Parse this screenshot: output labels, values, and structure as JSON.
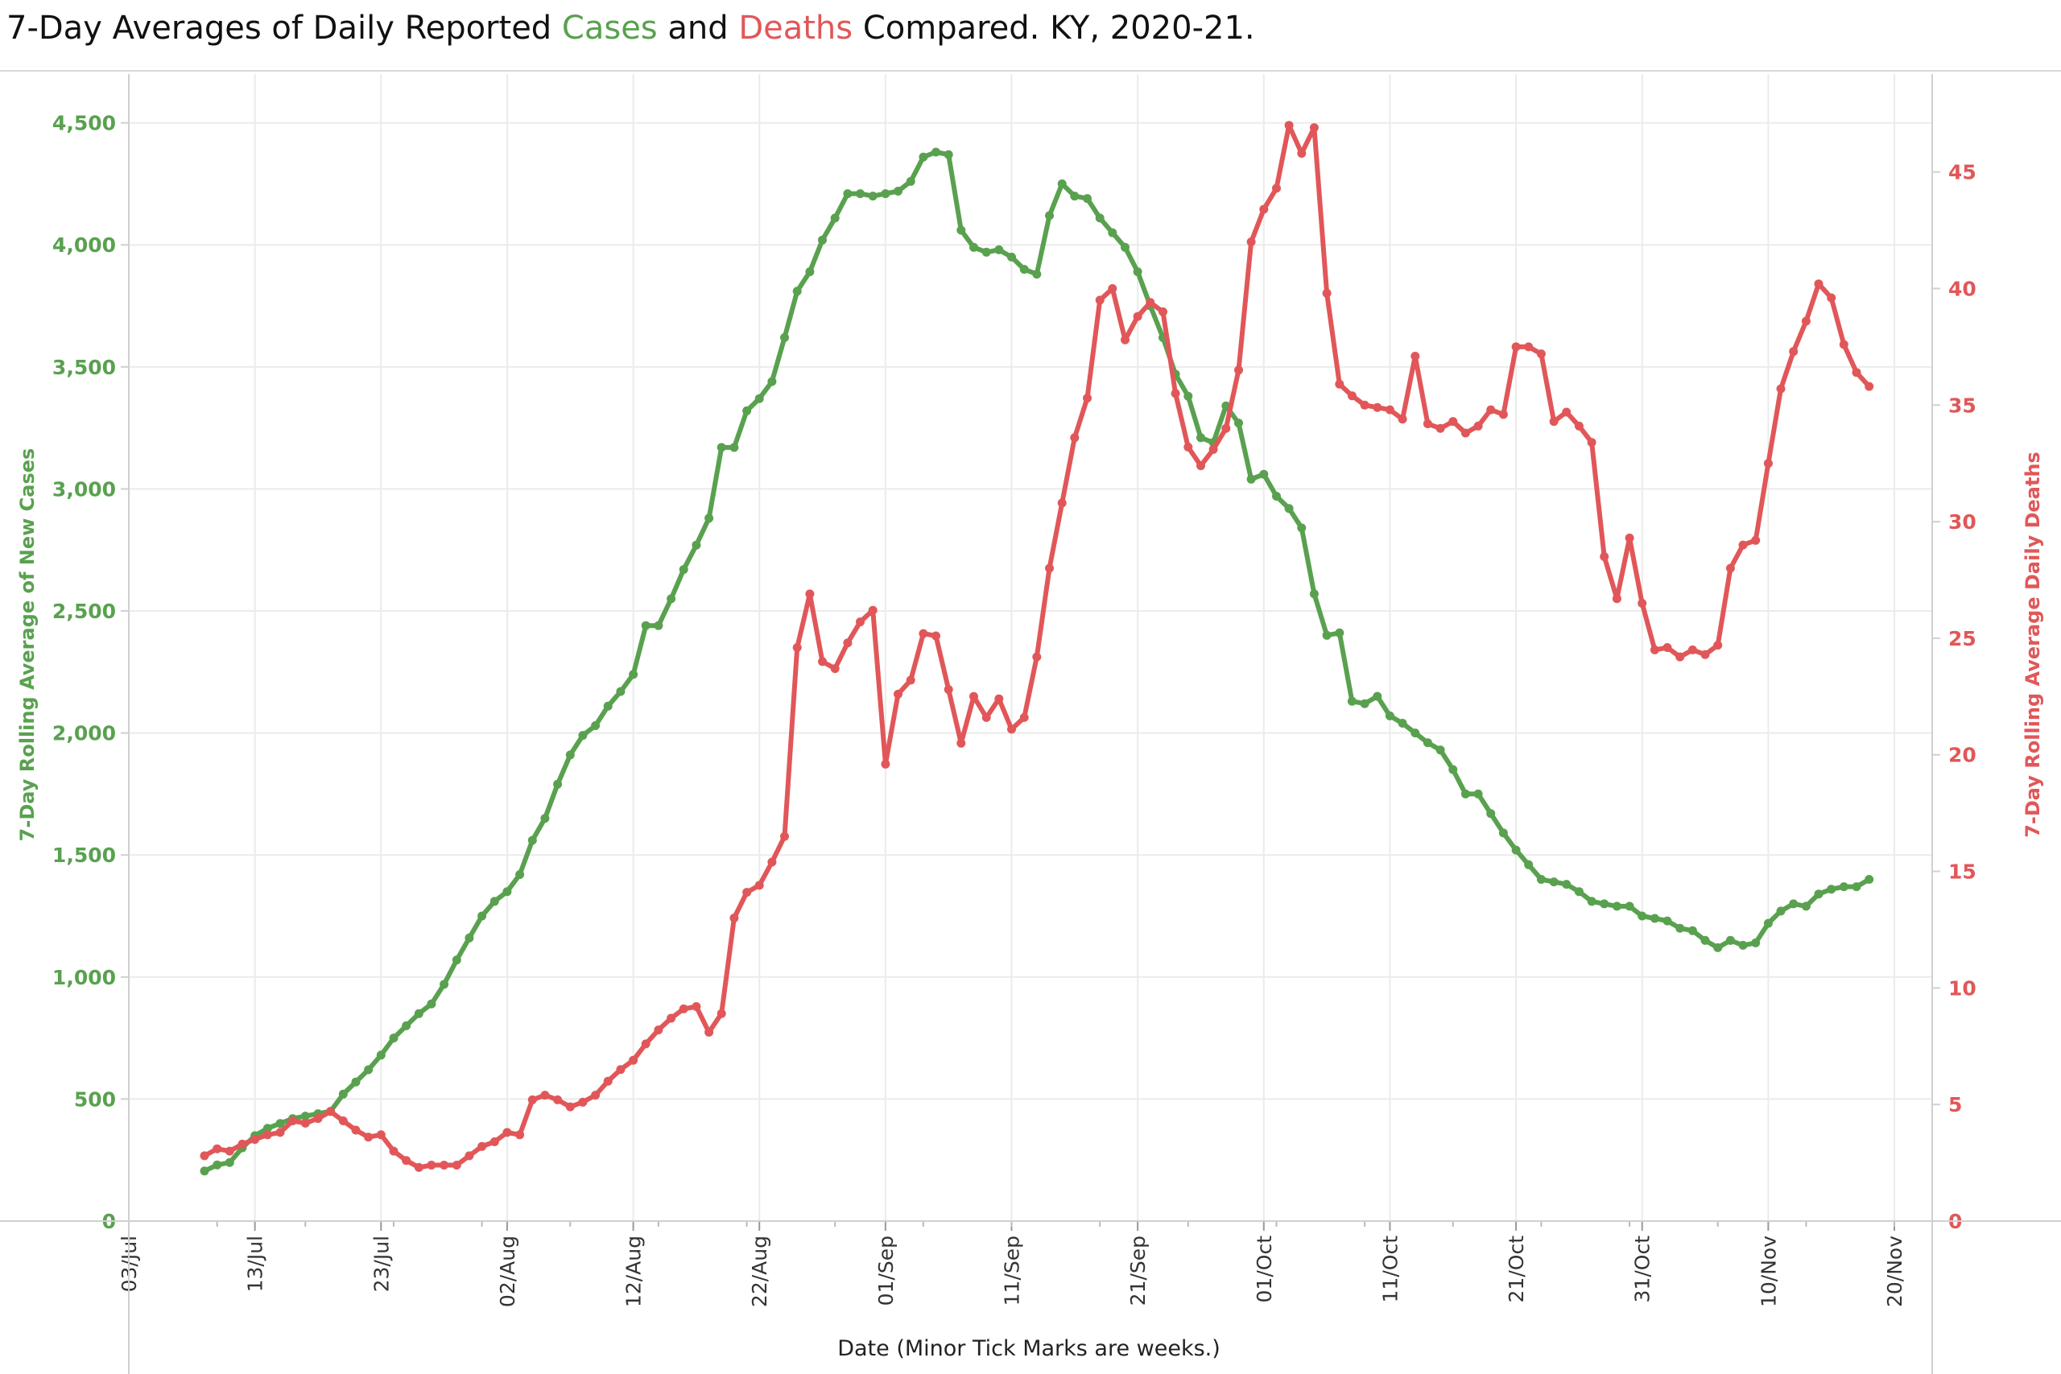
{
  "title": {
    "part1": "7-Day Averages of Daily Reported ",
    "cases_word": "Cases",
    "part2": " and ",
    "deaths_word": "Deaths",
    "part3": " Compared. KY, 2020-21."
  },
  "colors": {
    "cases": "#59a14f",
    "deaths": "#e15759",
    "grid": "#ebebeb",
    "axis": "#d0d0d0"
  },
  "chart_data": {
    "type": "line",
    "title": "7-Day Averages of Daily Reported Cases and Deaths Compared. KY, 2020-21.",
    "xlabel": "Date  (Minor Tick Marks are weeks.)",
    "ylabel": "7-Day Rolling  Average of New Cases",
    "ylabel_right": "7-Day Rolling Average Daily  Deaths",
    "x_date_start": "2021-07-03",
    "x_date_end": "2021-11-23",
    "x_ticks": [
      {
        "date": "2021-07-03",
        "label": "03/Jul"
      },
      {
        "date": "2021-07-13",
        "label": "13/Jul"
      },
      {
        "date": "2021-07-23",
        "label": "23/Jul"
      },
      {
        "date": "2021-08-02",
        "label": "02/Aug"
      },
      {
        "date": "2021-08-12",
        "label": "12/Aug"
      },
      {
        "date": "2021-08-22",
        "label": "22/Aug"
      },
      {
        "date": "2021-09-01",
        "label": "01/Sep"
      },
      {
        "date": "2021-09-11",
        "label": "11/Sep"
      },
      {
        "date": "2021-09-21",
        "label": "21/Sep"
      },
      {
        "date": "2021-10-01",
        "label": "01/Oct"
      },
      {
        "date": "2021-10-11",
        "label": "11/Oct"
      },
      {
        "date": "2021-10-21",
        "label": "21/Oct"
      },
      {
        "date": "2021-10-31",
        "label": "31/Oct"
      },
      {
        "date": "2021-11-10",
        "label": "10/Nov"
      },
      {
        "date": "2021-11-20",
        "label": "20/Nov"
      }
    ],
    "y_left": {
      "min": 0,
      "max": 4700,
      "ticks": [
        {
          "value": 0,
          "label": "0"
        },
        {
          "value": 500,
          "label": "500"
        },
        {
          "value": 1000,
          "label": "1,000"
        },
        {
          "value": 1500,
          "label": "1,500"
        },
        {
          "value": 2000,
          "label": "2,000"
        },
        {
          "value": 2500,
          "label": "2,500"
        },
        {
          "value": 3000,
          "label": "3,000"
        },
        {
          "value": 3500,
          "label": "3,500"
        },
        {
          "value": 4000,
          "label": "4,000"
        },
        {
          "value": 4500,
          "label": "4,500"
        }
      ]
    },
    "y_right": {
      "min": 0,
      "max": 49.2,
      "ticks": [
        {
          "value": 0,
          "label": "0"
        },
        {
          "value": 5,
          "label": "5"
        },
        {
          "value": 10,
          "label": "10"
        },
        {
          "value": 15,
          "label": "15"
        },
        {
          "value": 20,
          "label": "20"
        },
        {
          "value": 25,
          "label": "25"
        },
        {
          "value": 30,
          "label": "30"
        },
        {
          "value": 35,
          "label": "35"
        },
        {
          "value": 40,
          "label": "40"
        },
        {
          "value": 45,
          "label": "45"
        }
      ]
    },
    "grid": true,
    "series": [
      {
        "name": "Cases",
        "axis": "left",
        "color": "#59a14f",
        "start_date": "2021-07-09",
        "values": [
          205,
          230,
          240,
          300,
          350,
          380,
          400,
          420,
          430,
          440,
          450,
          520,
          570,
          620,
          680,
          750,
          800,
          850,
          890,
          970,
          1070,
          1160,
          1250,
          1310,
          1350,
          1420,
          1560,
          1650,
          1790,
          1910,
          1990,
          2030,
          2110,
          2170,
          2240,
          2440,
          2440,
          2550,
          2670,
          2770,
          2880,
          3170,
          3170,
          3320,
          3370,
          3440,
          3620,
          3810,
          3890,
          4020,
          4110,
          4210,
          4210,
          4200,
          4210,
          4220,
          4260,
          4360,
          4380,
          4370,
          4060,
          3990,
          3970,
          3980,
          3950,
          3900,
          3880,
          4120,
          4250,
          4200,
          4190,
          4110,
          4050,
          3990,
          3890,
          3750,
          3620,
          3470,
          3380,
          3210,
          3190,
          3340,
          3270,
          3040,
          3060,
          2970,
          2920,
          2840,
          2570,
          2400,
          2410,
          2130,
          2120,
          2150,
          2070,
          2040,
          2000,
          1960,
          1930,
          1850,
          1750,
          1750,
          1670,
          1590,
          1520,
          1460,
          1400,
          1390,
          1380,
          1350,
          1310,
          1300,
          1290,
          1290,
          1250,
          1240,
          1230,
          1200,
          1190,
          1150,
          1120,
          1150,
          1130,
          1140,
          1220,
          1270,
          1300,
          1290,
          1340,
          1360,
          1370,
          1370,
          1400
        ]
      },
      {
        "name": "Deaths",
        "axis": "right",
        "color": "#e15759",
        "start_date": "2021-07-09",
        "values": [
          2.8,
          3.1,
          3.0,
          3.3,
          3.5,
          3.7,
          3.8,
          4.3,
          4.2,
          4.4,
          4.7,
          4.3,
          3.9,
          3.6,
          3.7,
          3.0,
          2.6,
          2.3,
          2.4,
          2.4,
          2.4,
          2.8,
          3.2,
          3.4,
          3.8,
          3.7,
          5.2,
          5.4,
          5.2,
          4.9,
          5.1,
          5.4,
          6.0,
          6.5,
          6.9,
          7.6,
          8.2,
          8.7,
          9.1,
          9.2,
          8.1,
          8.9,
          13.0,
          14.1,
          14.4,
          15.4,
          16.5,
          24.6,
          26.9,
          24.0,
          23.7,
          24.8,
          25.7,
          26.2,
          19.6,
          22.6,
          23.2,
          25.2,
          25.1,
          22.8,
          20.5,
          22.5,
          21.6,
          22.4,
          21.1,
          21.6,
          24.2,
          28.0,
          30.8,
          33.6,
          35.3,
          39.5,
          40.0,
          37.8,
          38.8,
          39.4,
          39.0,
          35.5,
          33.2,
          32.4,
          33.1,
          34.0,
          36.5,
          42.0,
          43.4,
          44.3,
          47.0,
          45.8,
          46.9,
          39.8,
          35.9,
          35.4,
          35.0,
          34.9,
          34.8,
          34.4,
          37.1,
          34.2,
          34.0,
          34.3,
          33.8,
          34.1,
          34.8,
          34.6,
          37.5,
          37.5,
          37.2,
          34.3,
          34.7,
          34.1,
          33.4,
          28.5,
          26.7,
          29.3,
          26.5,
          24.5,
          24.6,
          24.2,
          24.5,
          24.3,
          24.7,
          28.0,
          29.0,
          29.2,
          32.5,
          35.7,
          37.3,
          38.6,
          40.2,
          39.6,
          37.6,
          36.4,
          35.8
        ]
      }
    ]
  }
}
